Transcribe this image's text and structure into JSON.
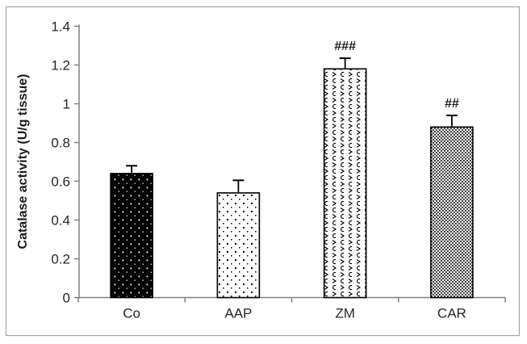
{
  "figure": {
    "background": "#ffffff",
    "border_color": "#a6a6a6"
  },
  "chart_data": {
    "type": "bar",
    "title": "",
    "xlabel": "",
    "ylabel": "Catalase activity (U/g tissue)",
    "categories": [
      "Co",
      "AAP",
      "ZM",
      "CAR"
    ],
    "values": [
      0.64,
      0.54,
      1.18,
      0.88
    ],
    "error_bars": [
      0.04,
      0.065,
      0.055,
      0.06
    ],
    "annotations": [
      "",
      "",
      "###",
      "##"
    ],
    "y_ticks": [
      "0",
      "0.2",
      "0.4",
      "0.6",
      "0.8",
      "1",
      "1.2",
      "1.4"
    ],
    "ylim": [
      0,
      1.4
    ],
    "grid": false,
    "legend": "none",
    "bar_patterns": [
      "black-white-dots",
      "white-black-dots",
      "weave-chevron",
      "dense-dot-grid"
    ],
    "colors": {
      "bar_outline": "#000000",
      "axis": "#808080",
      "text": "#262626",
      "annotation": "#1a1a1a"
    }
  }
}
